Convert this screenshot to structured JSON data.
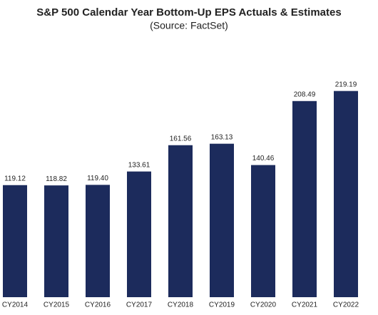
{
  "chart_data": {
    "type": "bar",
    "title": "S&P 500 Calendar Year Bottom-Up EPS Actuals & Estimates",
    "subtitle": "(Source: FactSet)",
    "categories": [
      "CY2014",
      "CY2015",
      "CY2016",
      "CY2017",
      "CY2018",
      "CY2019",
      "CY2020",
      "CY2021",
      "CY2022"
    ],
    "values": [
      119.12,
      118.82,
      119.4,
      133.61,
      161.56,
      163.13,
      140.46,
      208.49,
      219.19
    ],
    "value_labels": [
      "119.12",
      "118.82",
      "119.40",
      "133.61",
      "161.56",
      "163.13",
      "140.46",
      "208.49",
      "219.19"
    ],
    "color": "#1c2b5c",
    "ylim": [
      0,
      300
    ]
  }
}
